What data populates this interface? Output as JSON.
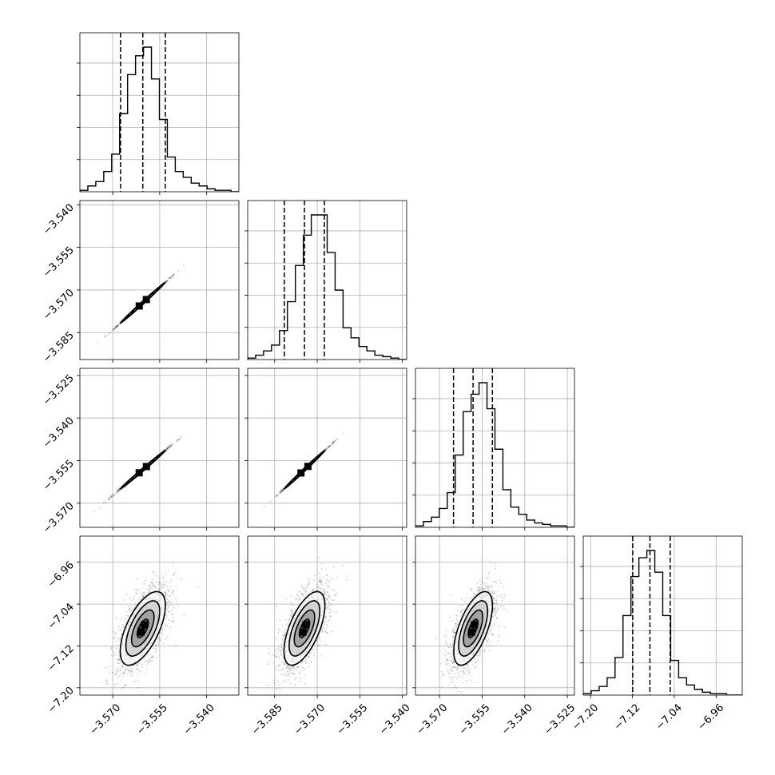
{
  "chart_data": {
    "type": "corner",
    "parameter_ranges": [
      [
        -3.5805,
        -3.5297
      ],
      [
        -3.5945,
        -3.5385
      ],
      [
        -3.5785,
        -3.5225
      ],
      [
        -7.214,
        -6.91
      ]
    ],
    "tick_values": [
      [
        -3.57,
        -3.555,
        -3.54
      ],
      [
        -3.585,
        -3.57,
        -3.555,
        -3.54
      ],
      [
        -3.57,
        -3.555,
        -3.54,
        -3.525
      ],
      [
        -7.2,
        -7.12,
        -7.04,
        -6.96
      ]
    ],
    "tick_labels": [
      [
        "−3.570",
        "−3.555",
        "−3.540"
      ],
      [
        "−3.585",
        "−3.570",
        "−3.555",
        "−3.540"
      ],
      [
        "−3.570",
        "−3.555",
        "−3.540",
        "−3.525"
      ],
      [
        "−7.20",
        "−7.12",
        "−7.04",
        "−6.96"
      ]
    ],
    "quantiles": [
      [
        -3.5675,
        -3.5604,
        -3.5532
      ],
      [
        -3.5816,
        -3.5745,
        -3.5675
      ],
      [
        -3.5651,
        -3.5582,
        -3.5514
      ],
      [
        -7.1194,
        -7.0865,
        -7.0477
      ]
    ],
    "histograms": [
      [
        0.01,
        0.04,
        0.07,
        0.14,
        0.26,
        0.54,
        0.81,
        0.94,
        1.0,
        0.78,
        0.5,
        0.24,
        0.14,
        0.1,
        0.06,
        0.04,
        0.02,
        0.01,
        0.01,
        0.0
      ],
      [
        0.01,
        0.03,
        0.06,
        0.1,
        0.2,
        0.4,
        0.65,
        0.86,
        1.0,
        1.0,
        0.74,
        0.48,
        0.22,
        0.15,
        0.09,
        0.06,
        0.03,
        0.02,
        0.01,
        0.0
      ],
      [
        0.01,
        0.04,
        0.07,
        0.13,
        0.24,
        0.5,
        0.8,
        0.92,
        1.0,
        0.82,
        0.54,
        0.26,
        0.14,
        0.09,
        0.05,
        0.03,
        0.02,
        0.01,
        0.01,
        0.0
      ],
      [
        0.01,
        0.03,
        0.06,
        0.12,
        0.26,
        0.55,
        0.82,
        0.95,
        1.0,
        0.85,
        0.55,
        0.24,
        0.12,
        0.07,
        0.04,
        0.02,
        0.01,
        0.01,
        0.0,
        0.0
      ]
    ],
    "parameter_std": [
      0.0036,
      0.0036,
      0.0034,
      0.0352
    ],
    "pair_correlations": [
      {
        "row": 1,
        "col": 0,
        "rho": 0.999
      },
      {
        "row": 2,
        "col": 0,
        "rho": 0.998
      },
      {
        "row": 2,
        "col": 1,
        "rho": 0.999
      },
      {
        "row": 3,
        "col": 0,
        "rho": 0.62
      },
      {
        "row": 3,
        "col": 1,
        "rho": 0.62
      },
      {
        "row": 3,
        "col": 2,
        "rho": 0.62
      }
    ],
    "contour_levels_sigma": [
      0.5,
      1.0,
      1.5,
      2.0
    ],
    "grid": true,
    "colors": {
      "line": "#000000",
      "grid": "#b0b0b0",
      "scatter": "#000000",
      "fill_light": "#d0d0d0",
      "fill_mid": "#9c9c9c",
      "fill_dark": "#555555",
      "fill_core": "#000000"
    }
  }
}
